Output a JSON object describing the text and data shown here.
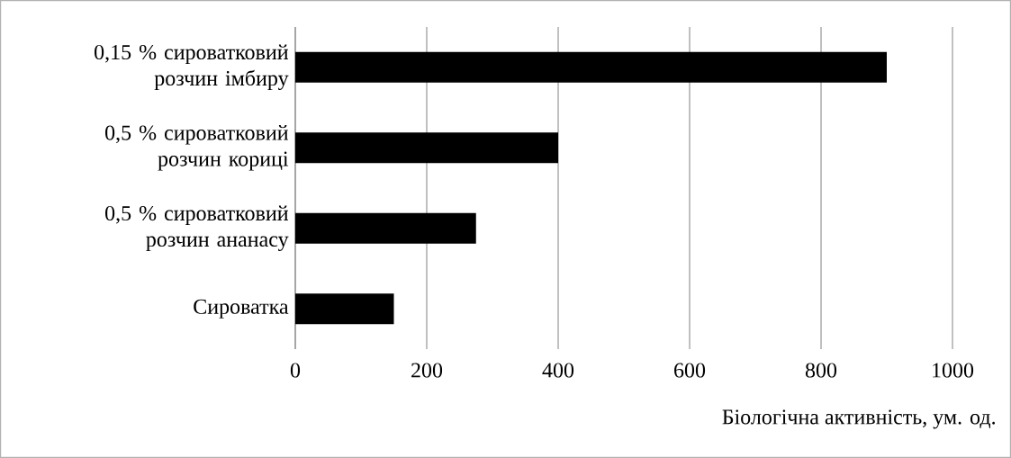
{
  "chart_data": {
    "type": "bar",
    "orientation": "horizontal",
    "categories": [
      "0,15 % сироватковий розчин імбиру",
      "0,5 % сироватковий розчин кориці",
      "0,5 % сироватковий розчин ананасу",
      "Сироватка"
    ],
    "values": [
      900,
      400,
      275,
      150
    ],
    "color": "#000000",
    "xlabel": "Біологічна активність, ум. од.",
    "xlim": [
      0,
      1000
    ],
    "xticks": [
      0,
      200,
      400,
      600,
      800,
      1000
    ],
    "grid": "x"
  }
}
